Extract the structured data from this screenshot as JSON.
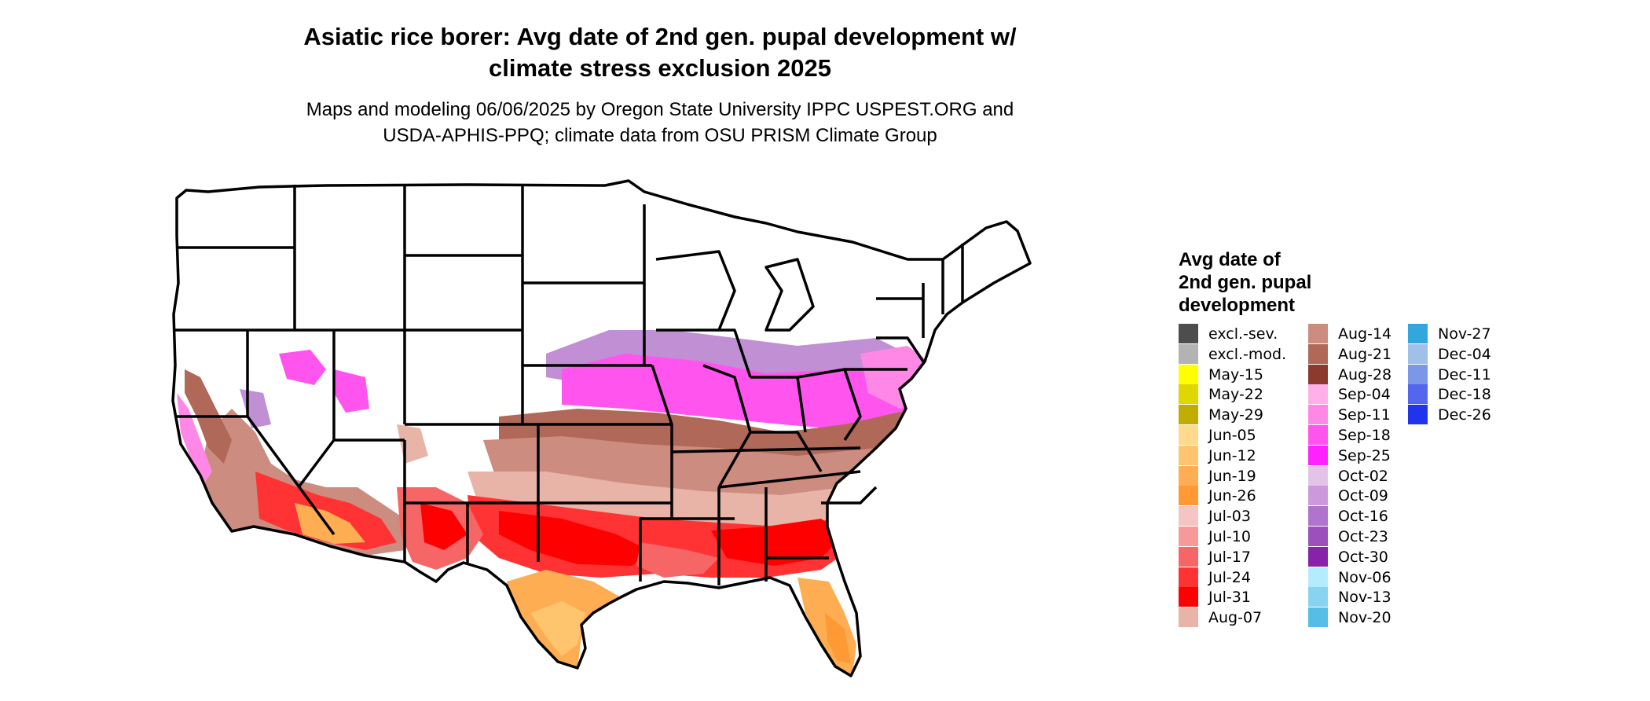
{
  "header": {
    "title_line1": "Asiatic rice borer: Avg date of 2nd gen. pupal development w/",
    "title_line2": "climate stress exclusion 2025",
    "subtitle_line1": "Maps and modeling 06/06/2025 by Oregon State University IPPC USPEST.ORG and",
    "subtitle_line2": "USDA-APHIS-PPQ; climate data from OSU PRISM Climate Group"
  },
  "legend": {
    "title_line1": "Avg date of",
    "title_line2": "2nd gen. pupal",
    "title_line3": "development",
    "columns": [
      [
        {
          "label": "excl.-sev.",
          "color": "#4d4d4d"
        },
        {
          "label": "excl.-mod.",
          "color": "#b3b3b3"
        },
        {
          "label": "May-15",
          "color": "#ffff00"
        },
        {
          "label": "May-22",
          "color": "#e0d600"
        },
        {
          "label": "May-29",
          "color": "#c2ac00"
        },
        {
          "label": "Jun-05",
          "color": "#ffd98c"
        },
        {
          "label": "Jun-12",
          "color": "#ffc46e"
        },
        {
          "label": "Jun-19",
          "color": "#ffad52"
        },
        {
          "label": "Jun-26",
          "color": "#ff9933"
        },
        {
          "label": "Jul-03",
          "color": "#f7c4c4"
        },
        {
          "label": "Jul-10",
          "color": "#f79999"
        },
        {
          "label": "Jul-17",
          "color": "#f76666"
        },
        {
          "label": "Jul-24",
          "color": "#ff3333"
        },
        {
          "label": "Jul-31",
          "color": "#ff0000"
        },
        {
          "label": "Aug-07",
          "color": "#e8b4a8"
        }
      ],
      [
        {
          "label": "Aug-14",
          "color": "#cc8c80"
        },
        {
          "label": "Aug-21",
          "color": "#b06858"
        },
        {
          "label": "Aug-28",
          "color": "#8c3a2e"
        },
        {
          "label": "Sep-04",
          "color": "#ffb0e8"
        },
        {
          "label": "Sep-11",
          "color": "#ff88e6"
        },
        {
          "label": "Sep-18",
          "color": "#ff55ee"
        },
        {
          "label": "Sep-25",
          "color": "#ff22ff"
        },
        {
          "label": "Oct-02",
          "color": "#e3c4e8"
        },
        {
          "label": "Oct-09",
          "color": "#cc99dd"
        },
        {
          "label": "Oct-16",
          "color": "#b074cc"
        },
        {
          "label": "Oct-23",
          "color": "#9c50bb"
        },
        {
          "label": "Oct-30",
          "color": "#8822aa"
        },
        {
          "label": "Nov-06",
          "color": "#b3ecff"
        },
        {
          "label": "Nov-13",
          "color": "#88d4f0"
        },
        {
          "label": "Nov-20",
          "color": "#55bde6"
        }
      ],
      [
        {
          "label": "Nov-27",
          "color": "#33a6dd"
        },
        {
          "label": "Dec-04",
          "color": "#a0c0e8"
        },
        {
          "label": "Dec-11",
          "color": "#7c96e8"
        },
        {
          "label": "Dec-18",
          "color": "#5566ee"
        },
        {
          "label": "Dec-26",
          "color": "#2233ee"
        }
      ]
    ]
  }
}
